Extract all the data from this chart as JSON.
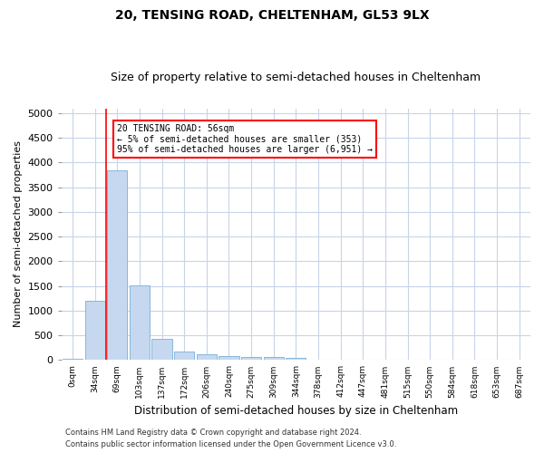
{
  "title1": "20, TENSING ROAD, CHELTENHAM, GL53 9LX",
  "title2": "Size of property relative to semi-detached houses in Cheltenham",
  "xlabel": "Distribution of semi-detached houses by size in Cheltenham",
  "ylabel": "Number of semi-detached properties",
  "footnote1": "Contains HM Land Registry data © Crown copyright and database right 2024.",
  "footnote2": "Contains public sector information licensed under the Open Government Licence v3.0.",
  "bin_labels": [
    "0sqm",
    "34sqm",
    "69sqm",
    "103sqm",
    "137sqm",
    "172sqm",
    "206sqm",
    "240sqm",
    "275sqm",
    "309sqm",
    "344sqm",
    "378sqm",
    "412sqm",
    "447sqm",
    "481sqm",
    "515sqm",
    "550sqm",
    "584sqm",
    "618sqm",
    "653sqm",
    "687sqm"
  ],
  "bar_heights": [
    30,
    1200,
    3850,
    1520,
    430,
    175,
    110,
    90,
    65,
    55,
    45,
    10,
    5,
    5,
    5,
    5,
    0,
    0,
    0,
    0,
    0
  ],
  "bar_color": "#c5d8f0",
  "bar_edge_color": "#7aafd4",
  "red_line_x": 1.5,
  "annot_line1": "20 TENSING ROAD: 56sqm",
  "annot_line2": "← 5% of semi-detached houses are smaller (353)",
  "annot_line3": "95% of semi-detached houses are larger (6,951) →",
  "ylim": [
    0,
    5100
  ],
  "yticks": [
    0,
    500,
    1000,
    1500,
    2000,
    2500,
    3000,
    3500,
    4000,
    4500,
    5000
  ],
  "background_color": "#ffffff",
  "grid_color": "#c8d4e8",
  "title_fontsize": 10,
  "subtitle_fontsize": 9
}
